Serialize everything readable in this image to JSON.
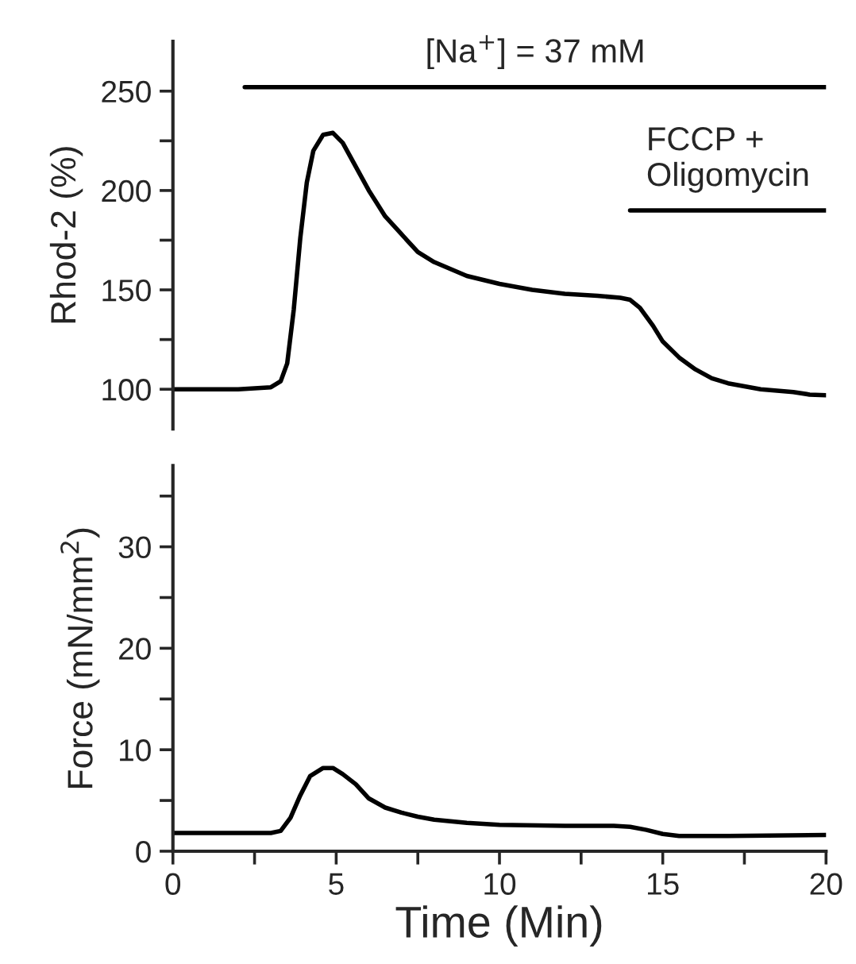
{
  "chart_data": [
    {
      "type": "line",
      "ylabel": "Rhod-2 (%)",
      "xlim": [
        0,
        20
      ],
      "ylim": [
        80,
        275
      ],
      "tick_labels": "y",
      "yticks": [
        100,
        {
          "value": 125,
          "label": null
        },
        150,
        {
          "value": 175,
          "label": null
        },
        200,
        {
          "value": 225,
          "label": null
        },
        250
      ],
      "x": [
        0,
        2,
        3,
        3.3,
        3.5,
        3.7,
        3.9,
        4.1,
        4.3,
        4.6,
        4.9,
        5.2,
        5.6,
        6.0,
        6.5,
        7,
        7.5,
        8,
        9,
        10,
        11,
        12,
        13,
        13.7,
        14,
        14.3,
        14.7,
        15,
        15.5,
        16,
        16.5,
        17,
        18,
        19,
        19.5,
        20
      ],
      "series": [
        {
          "name": "[Na$^{+}$] = 37 mM",
          "color": "#000000",
          "x": [
            2.2,
            20
          ],
          "values": [
            252,
            252
          ]
        },
        {
          "name": "FCCP +\nOligomycin",
          "color": "#000000",
          "x": [
            14,
            20
          ],
          "values": [
            190,
            190
          ]
        },
        {
          "color": "#000000",
          "values": [
            100,
            100,
            101,
            104,
            113,
            140,
            176,
            204,
            220,
            228,
            229,
            224,
            212,
            200,
            187,
            178,
            169,
            164,
            157,
            153,
            150,
            148,
            147,
            146,
            145,
            141,
            132,
            124,
            116,
            110,
            105.5,
            103,
            100,
            98.6,
            97.3,
            97
          ]
        }
      ]
    },
    {
      "type": "line",
      "xlabel": "Time (Min)",
      "ylabel": "Force (mN/mm$^{2}$)",
      "xlim": [
        0,
        20
      ],
      "ylim": [
        0,
        38
      ],
      "xticks": [
        0,
        {
          "value": 2.5,
          "label": null
        },
        5,
        {
          "value": 7.5,
          "label": null
        },
        10,
        {
          "value": 12.5,
          "label": null
        },
        15,
        {
          "value": 17.5,
          "label": null
        },
        20
      ],
      "yticks": [
        0,
        {
          "value": 5,
          "label": null
        },
        10,
        {
          "value": 15,
          "label": null
        },
        20,
        {
          "value": 25,
          "label": null
        },
        30,
        {
          "value": 35,
          "label": null
        }
      ],
      "x": [
        0,
        3,
        3.3,
        3.6,
        3.9,
        4.2,
        4.6,
        4.9,
        5.2,
        5.6,
        6,
        6.5,
        7,
        7.5,
        8,
        9,
        10,
        12,
        13.5,
        14,
        14.5,
        15,
        15.5,
        17,
        20
      ],
      "series": [
        {
          "color": "#000000",
          "values": [
            1.8,
            1.8,
            2.0,
            3.3,
            5.5,
            7.4,
            8.2,
            8.2,
            7.6,
            6.6,
            5.2,
            4.3,
            3.8,
            3.4,
            3.1,
            2.8,
            2.6,
            2.5,
            2.5,
            2.4,
            2.1,
            1.7,
            1.5,
            1.5,
            1.6
          ]
        }
      ]
    }
  ]
}
